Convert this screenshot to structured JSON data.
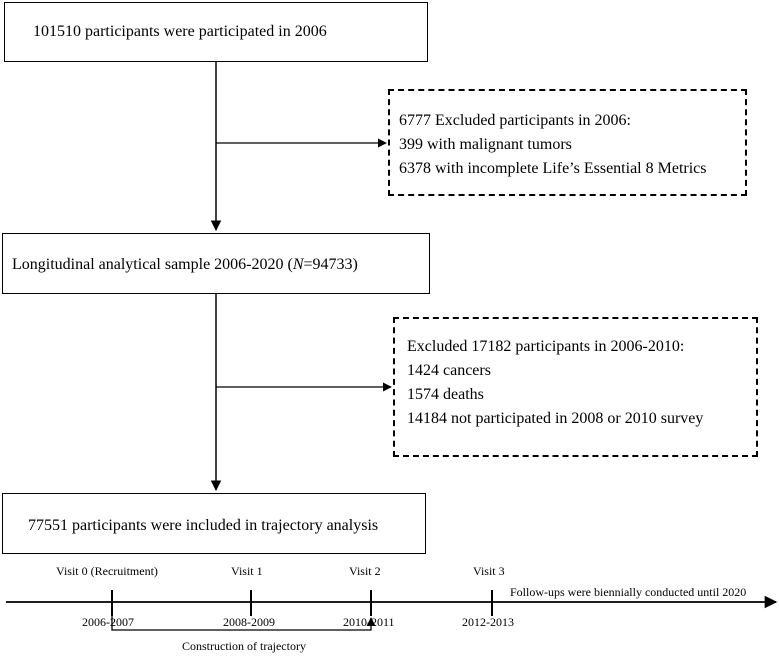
{
  "flow": {
    "box1": "101510 participants were participated in 2006",
    "exclusion1": {
      "lines": [
        "6777 Excluded participants in 2006:",
        "399 with malignant tumors",
        "6378 with incomplete Life’s Essential 8 Metrics"
      ]
    },
    "box2": {
      "prefix": "Longitudinal analytical sample 2006-2020 (",
      "n_symbol": "N",
      "suffix": "=94733)"
    },
    "exclusion2": {
      "lines": [
        "Excluded 17182 participants in 2006-2010:",
        "1424 cancers",
        "1574 deaths",
        "14184 not participated in 2008 or 2010 survey"
      ]
    },
    "box3": "77551 participants were included in trajectory analysis"
  },
  "timeline": {
    "visits": [
      {
        "label": "Visit 0 (Recruitment)",
        "period": "2006-2007"
      },
      {
        "label": "Visit 1",
        "period": "2008-2009"
      },
      {
        "label": "Visit 2",
        "period": "2010-2011"
      },
      {
        "label": "Visit 3",
        "period": "2012-2013"
      }
    ],
    "followup_text": "Follow-ups were biennially conducted until 2020",
    "bracket_label": "Construction of trajectory"
  }
}
